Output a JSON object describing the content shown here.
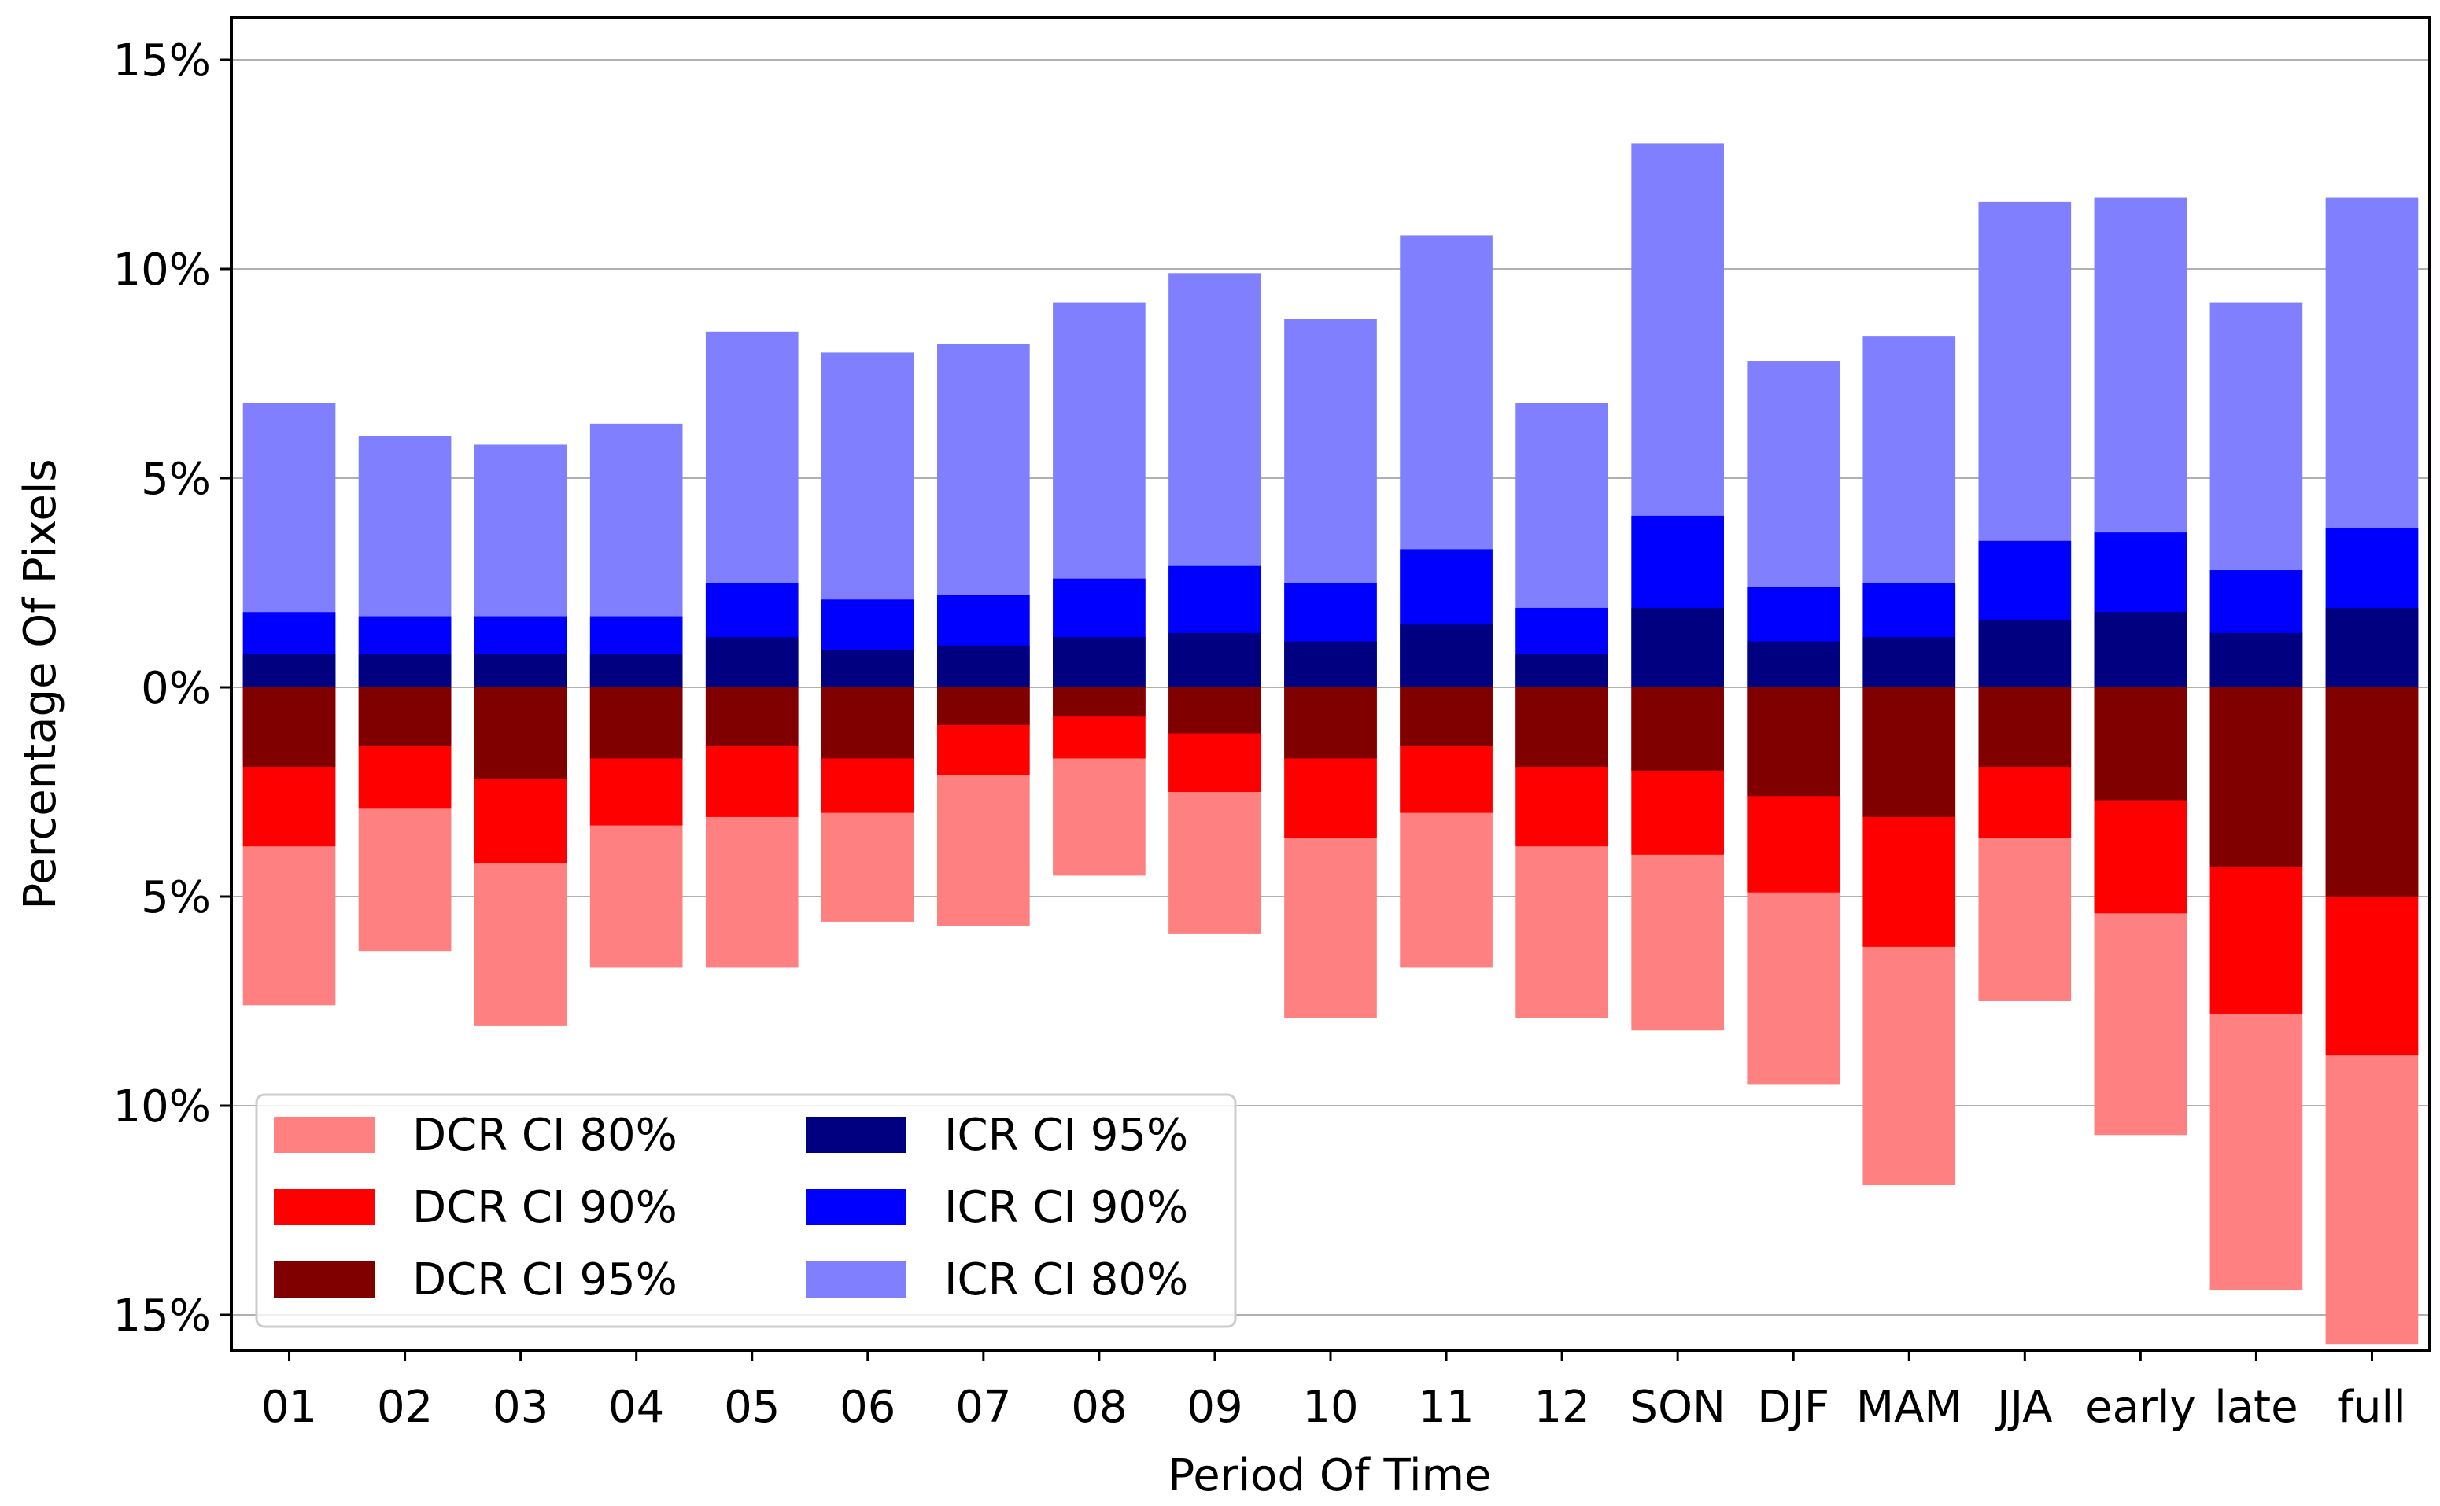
{
  "chart_data": {
    "type": "bar",
    "layout": "diverging-stacked",
    "xlabel": "Period Of Time",
    "ylabel": "Percentage Of Pixels",
    "ylim": [
      -16,
      16
    ],
    "yticks": [
      15,
      10,
      5,
      0,
      -5,
      -10,
      -15
    ],
    "ytick_labels": [
      "15%",
      "10%",
      "5%",
      "0%",
      "5%",
      "10%",
      "15%"
    ],
    "grid": "horizontal",
    "categories": [
      "01",
      "02",
      "03",
      "04",
      "05",
      "06",
      "07",
      "08",
      "09",
      "10",
      "11",
      "12",
      "SON",
      "DJF",
      "MAM",
      "JJA",
      "early",
      "late",
      "full"
    ],
    "series": [
      {
        "name": "ICR CI 80%",
        "direction": "up",
        "color": "#8080ff",
        "values": [
          6.8,
          6.0,
          5.8,
          6.3,
          8.5,
          8.0,
          8.2,
          9.2,
          9.9,
          8.8,
          10.8,
          6.8,
          13.0,
          7.8,
          8.4,
          11.6,
          11.7,
          9.2,
          11.7
        ]
      },
      {
        "name": "ICR CI 90%",
        "direction": "up",
        "color": "#0000ff",
        "values": [
          1.8,
          1.7,
          1.7,
          1.7,
          2.5,
          2.1,
          2.2,
          2.6,
          2.9,
          2.5,
          3.3,
          1.9,
          4.1,
          2.4,
          2.5,
          3.5,
          3.7,
          2.8,
          3.8
        ]
      },
      {
        "name": "ICR CI 95%",
        "direction": "up",
        "color": "#000080",
        "values": [
          0.8,
          0.8,
          0.8,
          0.8,
          1.2,
          0.9,
          1.0,
          1.2,
          1.3,
          1.1,
          1.5,
          0.8,
          1.9,
          1.1,
          1.2,
          1.6,
          1.8,
          1.3,
          1.9
        ]
      },
      {
        "name": "DCR CI 80%",
        "direction": "down",
        "color": "#ff8080",
        "values": [
          7.6,
          6.3,
          8.1,
          6.7,
          6.7,
          5.6,
          5.7,
          4.5,
          5.9,
          7.9,
          6.7,
          7.9,
          8.2,
          9.5,
          11.9,
          7.5,
          10.7,
          14.4,
          15.7
        ]
      },
      {
        "name": "DCR CI 90%",
        "direction": "down",
        "color": "#ff0000",
        "values": [
          3.8,
          2.9,
          4.2,
          3.3,
          3.1,
          3.0,
          2.1,
          1.7,
          2.5,
          3.6,
          3.0,
          3.8,
          4.0,
          4.9,
          6.2,
          3.6,
          5.4,
          7.8,
          8.8
        ]
      },
      {
        "name": "DCR CI 95%",
        "direction": "down",
        "color": "#800000",
        "values": [
          1.9,
          1.4,
          2.2,
          1.7,
          1.4,
          1.7,
          0.9,
          0.7,
          1.1,
          1.7,
          1.4,
          1.9,
          2.0,
          2.6,
          3.1,
          1.9,
          2.7,
          4.3,
          5.0
        ]
      }
    ],
    "legend": {
      "position": "lower-left",
      "columns": [
        [
          "DCR CI 80%",
          "DCR CI 90%",
          "DCR CI 95%"
        ],
        [
          "ICR CI 95%",
          "ICR CI 90%",
          "ICR CI 80%"
        ]
      ]
    }
  }
}
